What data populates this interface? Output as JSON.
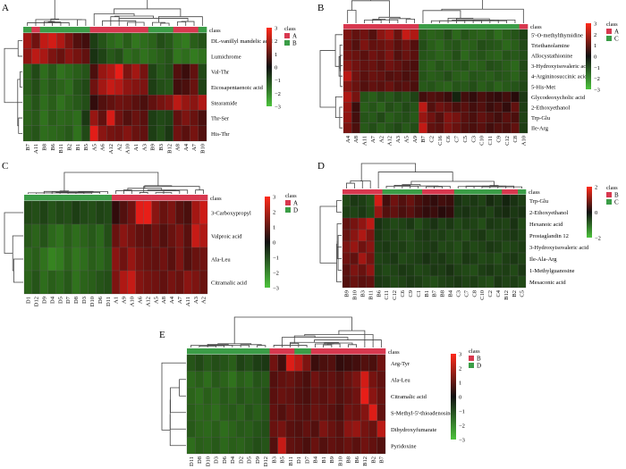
{
  "chart_data": [
    {
      "type": "heatmap",
      "panel_label": "A",
      "legend_title": "class",
      "legend_classes": [
        "A",
        "B"
      ],
      "colorbar_ticks": [
        3,
        2,
        1,
        0,
        -1,
        -2,
        -3
      ],
      "columns": [
        "B7",
        "A11",
        "B8",
        "B6",
        "B11",
        "B2",
        "B1",
        "B5",
        "A5",
        "A6",
        "A12",
        "A2",
        "A10",
        "A1",
        "A3",
        "B9",
        "B3",
        "B12",
        "A8",
        "A4",
        "A7",
        "B10"
      ],
      "column_class": [
        "B",
        "A",
        "B",
        "B",
        "B",
        "B",
        "B",
        "B",
        "A",
        "A",
        "A",
        "A",
        "A",
        "A",
        "A",
        "B",
        "B",
        "B",
        "A",
        "A",
        "A",
        "B"
      ],
      "rows": [
        "DL-vanillyl mandelic acid",
        "Lumichrome",
        "Val-Thr",
        "Eicosapentaenoic acid",
        "Stearamide",
        "Thr-Ser",
        "His-Thr"
      ],
      "values": [
        [
          1.8,
          1.0,
          2.3,
          2.6,
          2.0,
          1.2,
          0.6,
          0.4,
          -0.6,
          -1.0,
          -1.4,
          -1.6,
          -1.2,
          -1.7,
          -1.5,
          -1.3,
          -0.9,
          -1.1,
          -1.6,
          -1.8,
          -1.2,
          -1.0
        ],
        [
          1.5,
          2.2,
          1.9,
          1.2,
          0.9,
          1.4,
          1.1,
          0.8,
          -0.4,
          -0.7,
          -1.1,
          -0.9,
          -1.5,
          -1.3,
          -1.6,
          -1.4,
          -1.2,
          -1.0,
          -1.7,
          -1.5,
          -1.8,
          -1.6
        ],
        [
          -1.3,
          -0.8,
          -1.5,
          -1.1,
          -1.6,
          -1.4,
          -1.2,
          -1.0,
          0.5,
          1.6,
          2.0,
          3.0,
          1.2,
          1.8,
          1.1,
          -0.7,
          -1.1,
          -0.9,
          0.6,
          0.3,
          0.8,
          -0.8
        ],
        [
          -1.2,
          -0.9,
          -1.4,
          -1.1,
          -1.3,
          -1.5,
          -1.0,
          -0.8,
          1.0,
          1.8,
          2.4,
          2.1,
          1.5,
          1.3,
          1.2,
          -0.6,
          -0.9,
          -1.0,
          0.4,
          0.5,
          0.9,
          -0.7
        ],
        [
          -1.4,
          -1.0,
          -1.5,
          -1.2,
          -1.6,
          -1.3,
          -1.1,
          -0.9,
          0.2,
          0.6,
          0.8,
          1.0,
          0.9,
          0.7,
          0.5,
          0.8,
          1.1,
          1.3,
          2.2,
          1.6,
          1.4,
          2.0
        ],
        [
          -1.3,
          -1.1,
          -1.6,
          -1.2,
          -1.4,
          -1.3,
          -1.5,
          -0.5,
          1.6,
          0.8,
          2.7,
          1.0,
          0.6,
          0.9,
          0.7,
          -0.6,
          -0.8,
          -0.7,
          0.8,
          1.2,
          0.9,
          0.5
        ],
        [
          -1.2,
          -1.0,
          -1.5,
          -1.4,
          -1.3,
          -1.1,
          -1.6,
          -0.8,
          2.9,
          1.4,
          1.1,
          1.0,
          1.3,
          0.9,
          0.8,
          -0.6,
          -0.9,
          -0.5,
          1.0,
          0.7,
          1.1,
          0.6
        ]
      ]
    },
    {
      "type": "heatmap",
      "panel_label": "B",
      "legend_title": "class",
      "legend_classes": [
        "A",
        "C"
      ],
      "colorbar_ticks": [
        3,
        2,
        1,
        0,
        -1,
        -2,
        -3
      ],
      "columns": [
        "A4",
        "A8",
        "A11",
        "A7",
        "A2",
        "A12",
        "A3",
        "A5",
        "A9",
        "B7",
        "C2",
        "C16",
        "C6",
        "C7",
        "C5",
        "C3",
        "C10",
        "C11",
        "C9",
        "C12",
        "C8",
        "A10"
      ],
      "column_class": [
        "A",
        "A",
        "A",
        "A",
        "A",
        "A",
        "A",
        "A",
        "A",
        "C",
        "C",
        "C",
        "C",
        "C",
        "C",
        "C",
        "C",
        "C",
        "C",
        "C",
        "C",
        "A"
      ],
      "rows": [
        "5'-O-methylthymidine",
        "Triethanolamine",
        "Allocystathionine",
        "3-Hydroxyisovaleric acid",
        "4-Argininosuccinic acid",
        "5-His-Met",
        "Glycodeoxycholic acid",
        "2-Ethoxyethanol",
        "Trp-Glu",
        "Ile-Arg"
      ],
      "values": [
        [
          1.2,
          0.8,
          1.0,
          0.6,
          1.4,
          1.8,
          0.9,
          2.4,
          2.0,
          -1.1,
          -1.3,
          -1.2,
          -0.9,
          -1.4,
          -1.0,
          -1.2,
          -1.3,
          -1.1,
          -1.5,
          -1.2,
          -1.0,
          -0.7
        ],
        [
          1.0,
          0.6,
          1.2,
          0.8,
          0.9,
          1.1,
          0.7,
          1.0,
          0.6,
          -0.9,
          -1.2,
          -1.4,
          -1.1,
          -1.0,
          -1.3,
          -1.2,
          -0.9,
          -1.0,
          -1.1,
          -1.4,
          -1.2,
          -0.8
        ],
        [
          1.1,
          0.9,
          0.7,
          1.0,
          0.8,
          1.2,
          0.6,
          0.9,
          0.7,
          -1.0,
          -1.1,
          -1.3,
          -1.2,
          -0.9,
          -1.4,
          -1.1,
          -1.0,
          -1.2,
          -1.3,
          -1.0,
          -1.1,
          -0.9
        ],
        [
          1.4,
          1.0,
          0.8,
          0.9,
          0.7,
          1.0,
          0.8,
          0.6,
          0.5,
          -1.1,
          -1.3,
          -1.0,
          -1.2,
          -1.1,
          -1.0,
          -1.3,
          -1.2,
          -0.9,
          -1.0,
          -1.2,
          -1.4,
          -0.8
        ],
        [
          2.2,
          1.0,
          0.7,
          0.9,
          0.8,
          0.6,
          0.7,
          0.5,
          0.6,
          -1.0,
          -1.2,
          -1.1,
          -0.9,
          -1.2,
          -1.3,
          -1.0,
          -1.1,
          -1.2,
          -1.0,
          -1.1,
          -1.3,
          -0.9
        ],
        [
          1.3,
          0.9,
          0.6,
          0.8,
          0.7,
          0.9,
          0.6,
          0.7,
          0.5,
          -1.1,
          -1.0,
          -1.2,
          -1.3,
          -1.0,
          -1.1,
          -0.9,
          -1.2,
          -1.0,
          -1.3,
          -1.1,
          -1.0,
          -0.8
        ],
        [
          2.0,
          1.1,
          -1.0,
          -1.2,
          -0.9,
          -1.1,
          -0.8,
          -1.0,
          -0.7,
          0.4,
          0.6,
          0.5,
          0.3,
          -0.2,
          0.4,
          0.2,
          0.5,
          0.3,
          0.2,
          0.4,
          0.1,
          -0.5
        ],
        [
          1.6,
          0.3,
          -1.2,
          -1.0,
          -1.3,
          -0.9,
          -1.1,
          -0.8,
          -1.0,
          2.2,
          0.6,
          1.0,
          0.8,
          0.5,
          0.7,
          0.4,
          0.6,
          0.3,
          0.5,
          0.2,
          0.8,
          -0.6
        ],
        [
          1.5,
          0.4,
          -1.0,
          -1.1,
          -0.8,
          -1.2,
          -1.0,
          -0.9,
          -1.1,
          1.6,
          1.0,
          0.6,
          1.3,
          1.1,
          0.7,
          0.5,
          0.8,
          0.6,
          0.4,
          0.7,
          0.5,
          -0.7
        ],
        [
          1.2,
          0.5,
          -1.1,
          -0.9,
          -1.2,
          -1.0,
          -0.8,
          -1.1,
          -0.9,
          2.3,
          0.8,
          0.7,
          1.2,
          0.9,
          0.6,
          0.5,
          0.7,
          0.4,
          0.6,
          0.5,
          0.8,
          -0.6
        ]
      ]
    },
    {
      "type": "heatmap",
      "panel_label": "C",
      "legend_title": "class",
      "legend_classes": [
        "A",
        "D"
      ],
      "colorbar_ticks": [
        3,
        2,
        1,
        0,
        -1,
        -2,
        -3
      ],
      "columns": [
        "D1",
        "D12",
        "D9",
        "D4",
        "D5",
        "D7",
        "D8",
        "D3",
        "D10",
        "D6",
        "D11",
        "A1",
        "A9",
        "A10",
        "A6",
        "A12",
        "A5",
        "A8",
        "A4",
        "A7",
        "A11",
        "A3",
        "A2"
      ],
      "column_class": [
        "D",
        "D",
        "D",
        "D",
        "D",
        "D",
        "D",
        "D",
        "D",
        "D",
        "D",
        "A",
        "A",
        "A",
        "A",
        "A",
        "A",
        "A",
        "A",
        "A",
        "A",
        "A",
        "A"
      ],
      "rows": [
        "3-Carboxypropyl",
        "Valproic acid",
        "Ala-Leu",
        "Citramalic acid"
      ],
      "values": [
        [
          -0.8,
          -0.9,
          -0.7,
          -1.0,
          -0.8,
          -0.9,
          -0.6,
          -0.8,
          -0.9,
          -0.7,
          -0.8,
          0.2,
          0.6,
          1.0,
          2.9,
          3.0,
          1.4,
          0.9,
          1.2,
          0.7,
          0.5,
          1.8,
          2.5
        ],
        [
          -1.1,
          -1.3,
          -1.0,
          -1.4,
          -1.6,
          -1.2,
          -1.5,
          -1.3,
          -1.1,
          -1.4,
          -0.9,
          0.9,
          1.4,
          1.1,
          0.8,
          0.7,
          1.0,
          0.6,
          0.9,
          1.2,
          0.7,
          2.4,
          2.0
        ],
        [
          -1.4,
          -1.2,
          -1.6,
          -2.0,
          -1.8,
          -1.3,
          -1.7,
          -1.5,
          -1.2,
          -1.4,
          -1.1,
          1.4,
          1.0,
          1.6,
          1.1,
          0.9,
          0.8,
          1.0,
          0.7,
          1.2,
          0.6,
          0.9,
          1.0
        ],
        [
          -1.3,
          -1.0,
          -1.5,
          -1.2,
          -1.4,
          -1.1,
          -1.6,
          -1.3,
          -1.2,
          -1.0,
          -0.9,
          1.2,
          2.0,
          2.4,
          1.3,
          1.1,
          1.0,
          0.8,
          1.1,
          0.9,
          1.4,
          1.2,
          0.9
        ]
      ]
    },
    {
      "type": "heatmap",
      "panel_label": "D",
      "legend_title": "class",
      "legend_classes": [
        "B",
        "C"
      ],
      "colorbar_ticks": [
        2,
        0,
        -2
      ],
      "columns": [
        "B9",
        "B10",
        "B3",
        "B11",
        "B6",
        "C11",
        "C12",
        "C6",
        "C9",
        "C1",
        "B1",
        "B7",
        "B8",
        "B4",
        "C3",
        "C7",
        "C8",
        "C10",
        "C2",
        "C4",
        "B12",
        "B2",
        "C5"
      ],
      "column_class": [
        "B",
        "B",
        "B",
        "B",
        "B",
        "C",
        "C",
        "C",
        "C",
        "C",
        "B",
        "B",
        "B",
        "B",
        "C",
        "C",
        "C",
        "C",
        "C",
        "C",
        "B",
        "B",
        "C"
      ],
      "rows": [
        "Trp-Glu",
        "2-Ethoxyethanol",
        "Hexanoic acid",
        "Prostaglandin 12",
        "3-Hydroxyisovaleric acid",
        "Ile-Ala-Arg",
        "1-Methylguanosine",
        "Mesaconic acid"
      ],
      "values": [
        [
          -0.8,
          -0.5,
          -0.6,
          -0.9,
          2.6,
          0.4,
          1.0,
          0.6,
          0.9,
          0.5,
          0.3,
          0.2,
          0.4,
          0.3,
          -0.4,
          -0.6,
          -0.5,
          -0.7,
          -0.3,
          -0.5,
          -0.2,
          -0.4,
          -0.6
        ],
        [
          -0.6,
          -0.7,
          -0.5,
          -0.8,
          1.6,
          0.6,
          0.8,
          0.5,
          0.7,
          0.4,
          0.2,
          0.3,
          0.1,
          0.2,
          -0.5,
          -0.4,
          -0.6,
          -0.5,
          -0.7,
          -0.4,
          -0.3,
          -0.5,
          -0.4
        ],
        [
          0.8,
          1.1,
          1.5,
          2.2,
          -0.4,
          -0.6,
          -0.8,
          -0.7,
          -0.5,
          -0.9,
          -0.6,
          -0.4,
          -0.7,
          -0.5,
          -0.8,
          -0.6,
          -0.7,
          -0.9,
          -0.5,
          -0.6,
          -0.7,
          -0.4,
          -0.8
        ],
        [
          0.9,
          1.4,
          2.0,
          1.2,
          -0.5,
          -0.7,
          -0.6,
          -0.8,
          -0.9,
          -0.6,
          -0.5,
          -0.7,
          -0.6,
          -0.8,
          -0.7,
          -0.9,
          -0.6,
          -0.5,
          -0.8,
          -0.7,
          -0.6,
          -0.5,
          -0.7
        ],
        [
          1.2,
          1.6,
          1.0,
          1.4,
          -0.6,
          -0.5,
          -0.7,
          -0.6,
          -0.8,
          -0.7,
          -0.6,
          -0.5,
          -0.8,
          -0.7,
          -0.9,
          -0.6,
          -0.8,
          -0.7,
          -0.5,
          -0.6,
          -0.8,
          -0.7,
          -0.6
        ],
        [
          1.0,
          0.8,
          1.8,
          1.1,
          -0.7,
          -0.6,
          -0.5,
          -0.8,
          -0.7,
          -0.6,
          -0.4,
          -0.6,
          -0.5,
          -0.7,
          -0.8,
          -0.5,
          -0.6,
          -0.8,
          -0.7,
          -0.9,
          -0.6,
          -0.5,
          -0.7
        ],
        [
          0.7,
          1.2,
          0.9,
          1.5,
          -0.6,
          -0.8,
          -0.7,
          -0.5,
          -0.6,
          -0.8,
          -0.7,
          -0.5,
          -0.6,
          -0.4,
          -0.7,
          -0.8,
          -0.9,
          -0.6,
          -0.5,
          -0.7,
          -0.6,
          -0.8,
          -0.5
        ],
        [
          0.6,
          0.9,
          0.7,
          0.8,
          -0.5,
          -0.6,
          -0.8,
          -0.7,
          -0.5,
          -0.6,
          -0.8,
          -0.9,
          -0.7,
          -0.6,
          -0.5,
          -0.7,
          -0.6,
          -0.8,
          -0.9,
          -0.5,
          -0.7,
          -0.6,
          -0.8
        ]
      ]
    },
    {
      "type": "heatmap",
      "panel_label": "E",
      "legend_title": "class",
      "legend_classes": [
        "B",
        "D"
      ],
      "colorbar_ticks": [
        3,
        2,
        1,
        0,
        -1,
        -2,
        -3
      ],
      "columns": [
        "D11",
        "D8",
        "D10",
        "D3",
        "D6",
        "D4",
        "D2",
        "D5",
        "D9",
        "D12",
        "B3",
        "B5",
        "B11",
        "D1",
        "D7",
        "B4",
        "B1",
        "B9",
        "B10",
        "B8",
        "B6",
        "B12",
        "B2",
        "B7"
      ],
      "column_class": [
        "D",
        "D",
        "D",
        "D",
        "D",
        "D",
        "D",
        "D",
        "D",
        "D",
        "B",
        "B",
        "B",
        "D",
        "D",
        "B",
        "B",
        "B",
        "B",
        "B",
        "B",
        "B",
        "B",
        "B"
      ],
      "rows": [
        "Arg-Tyr",
        "Ala-Leu",
        "Citramalic acid",
        "S-Methyl-5'-thioadenosine",
        "Dihydroxyfumarate",
        "Pyridoxine"
      ],
      "values": [
        [
          -1.0,
          -0.8,
          -1.1,
          -0.9,
          -1.0,
          -1.2,
          -0.7,
          -0.9,
          -0.6,
          -0.5,
          1.0,
          0.4,
          2.8,
          2.2,
          1.2,
          0.3,
          0.5,
          0.6,
          0.2,
          0.3,
          0.4,
          0.6,
          0.5,
          1.0
        ],
        [
          -1.4,
          -1.2,
          -1.5,
          -1.1,
          -1.3,
          -1.6,
          -1.2,
          -1.4,
          -1.0,
          -1.1,
          0.6,
          0.8,
          0.9,
          0.7,
          0.5,
          1.0,
          0.7,
          0.8,
          0.6,
          0.9,
          1.2,
          2.6,
          1.1,
          0.8
        ],
        [
          -1.3,
          -1.5,
          -1.2,
          -1.4,
          -1.1,
          -1.3,
          -1.0,
          -1.2,
          -1.1,
          -0.9,
          0.7,
          0.9,
          0.8,
          0.6,
          0.5,
          0.8,
          0.7,
          0.9,
          0.6,
          0.8,
          1.0,
          3.0,
          1.4,
          0.9
        ],
        [
          -1.2,
          -1.4,
          -1.3,
          -1.5,
          -1.2,
          -1.1,
          -1.3,
          -1.0,
          -1.2,
          -1.0,
          0.8,
          0.6,
          0.9,
          0.7,
          0.6,
          0.9,
          0.8,
          0.7,
          0.5,
          1.0,
          0.9,
          1.3,
          2.8,
          0.8
        ],
        [
          -1.1,
          -1.3,
          -1.4,
          -1.2,
          -1.5,
          -1.3,
          -1.1,
          -1.2,
          -1.0,
          -0.9,
          0.9,
          1.1,
          0.7,
          0.6,
          0.8,
          0.6,
          1.2,
          0.9,
          0.7,
          1.4,
          1.6,
          1.1,
          0.9,
          2.2
        ],
        [
          -1.5,
          -1.2,
          -1.3,
          -1.1,
          -1.4,
          -1.2,
          -1.3,
          -1.1,
          -0.9,
          -1.0,
          0.6,
          2.4,
          0.8,
          0.7,
          0.5,
          0.9,
          0.6,
          0.8,
          0.7,
          0.9,
          0.7,
          1.0,
          0.8,
          0.6
        ]
      ]
    }
  ]
}
